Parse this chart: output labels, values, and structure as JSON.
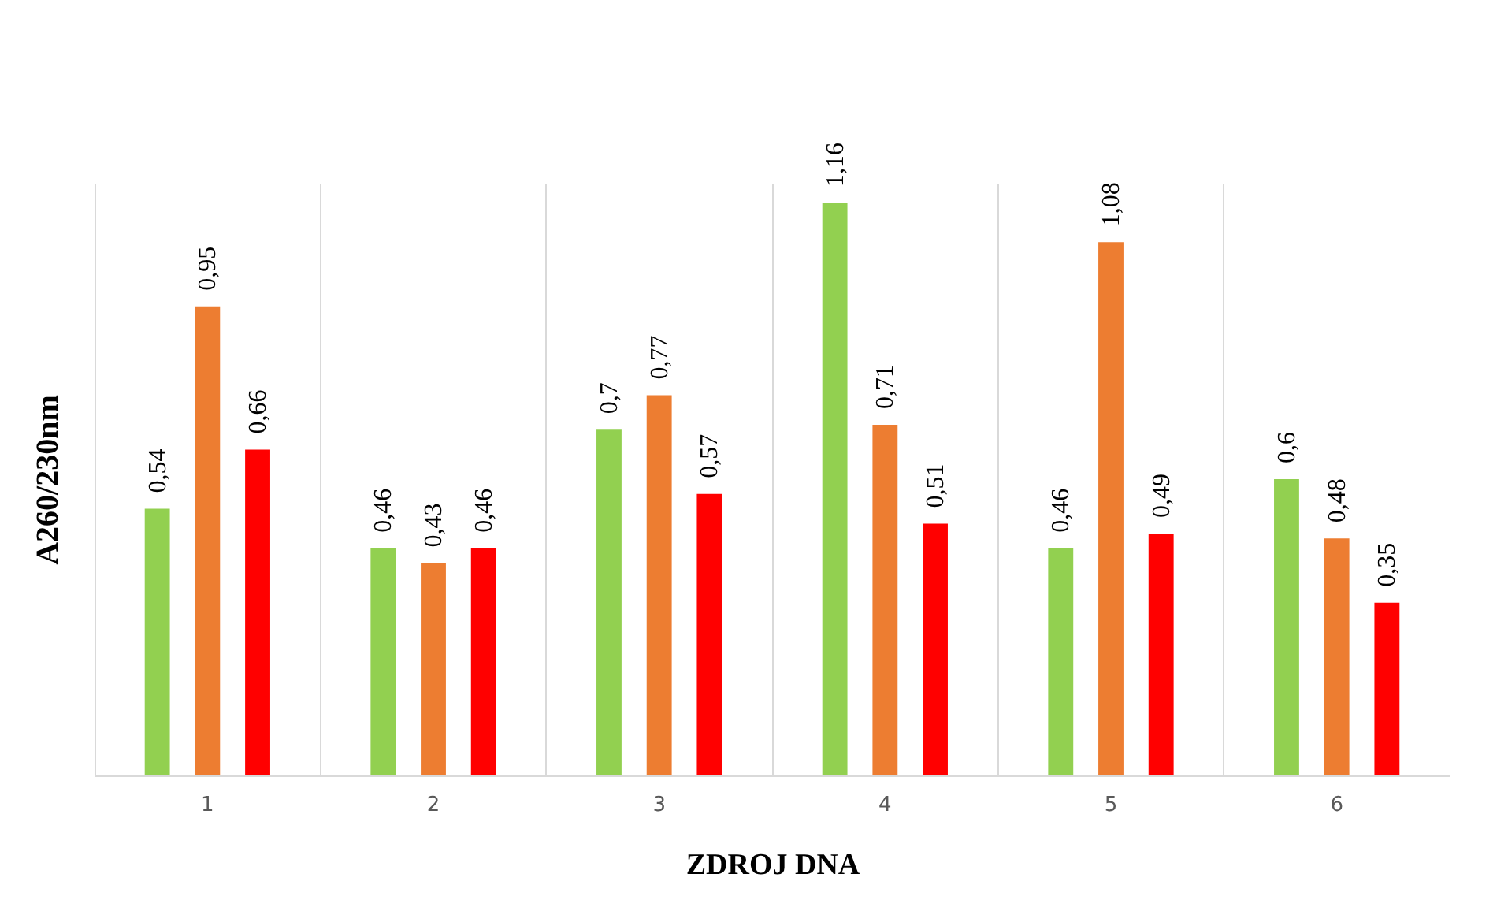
{
  "chart_data": {
    "type": "bar",
    "xlabel": "ZDROJ DNA",
    "ylabel": "A260/230nm",
    "categories": [
      "1",
      "2",
      "3",
      "4",
      "5",
      "6"
    ],
    "grid": "x",
    "legend": false,
    "series": [
      {
        "color": "#92d050",
        "values": [
          0.54,
          0.46,
          0.7,
          1.16,
          0.46,
          0.6
        ],
        "value_labels": [
          "0,54",
          "0,46",
          "0,7",
          "1,16",
          "0,46",
          "0,6"
        ]
      },
      {
        "color": "#ed7d31",
        "values": [
          0.95,
          0.43,
          0.77,
          0.71,
          1.08,
          0.48
        ],
        "value_labels": [
          "0,95",
          "0,43",
          "0,77",
          "0,71",
          "1,08",
          "0,48"
        ]
      },
      {
        "color": "#ff0000",
        "values": [
          0.66,
          0.46,
          0.57,
          0.51,
          0.49,
          0.35
        ],
        "value_labels": [
          "0,66",
          "0,46",
          "0,57",
          "0,51",
          "0,49",
          "0,35"
        ]
      }
    ]
  }
}
